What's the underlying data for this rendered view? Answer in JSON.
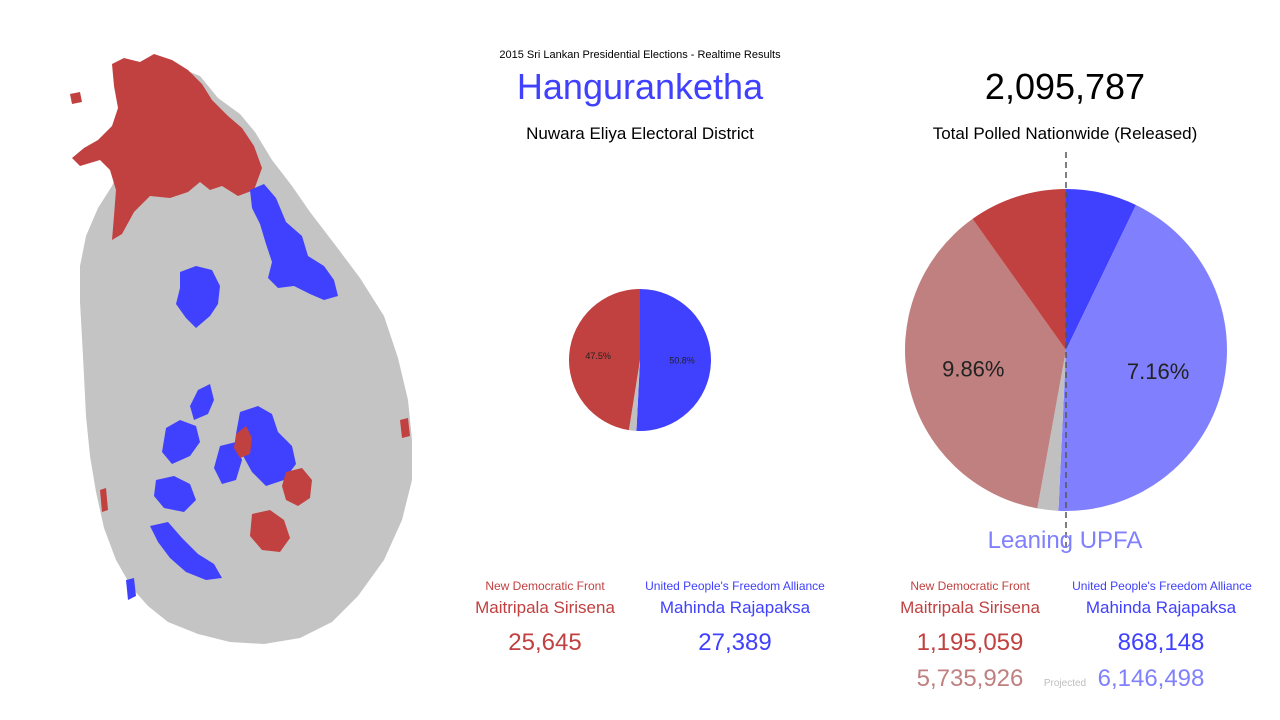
{
  "header": {
    "suptitle": "2015 Sri Lankan Presidential Elections - Realtime Results",
    "division": "Hanguranketha",
    "district": "Nuwara Eliya Electoral District",
    "total_polled": "2,095,787",
    "total_label": "Total Polled Nationwide (Released)",
    "leaning": "Leaning UPFA",
    "projected_label": "Projected"
  },
  "colors": {
    "ndf": "#c14040",
    "upfa": "#4040ff",
    "ndf_light": "#c08080",
    "upfa_light": "#8080ff",
    "other": "#c0c0c0",
    "map_base": "#c4c4c4"
  },
  "local": {
    "ndf_party": "New Democratic Front",
    "upfa_party": "United People's Freedom Alliance",
    "ndf_candidate": "Maitripala Sirisena",
    "upfa_candidate": "Mahinda Rajapaksa",
    "ndf_votes": "25,645",
    "upfa_votes": "27,389"
  },
  "national": {
    "ndf_party": "New Democratic Front",
    "upfa_party": "United People's Freedom Alliance",
    "ndf_candidate": "Maitripala Sirisena",
    "upfa_candidate": "Mahinda Rajapaksa",
    "ndf_votes": "1,195,059",
    "upfa_votes": "868,148",
    "ndf_projected": "5,735,926",
    "upfa_projected": "6,146,498"
  },
  "chart_data": [
    {
      "type": "pie",
      "title": "Hanguranketha",
      "slices": [
        {
          "name": "United People's Freedom Alliance",
          "value": 50.8,
          "label": "50.8%",
          "color": "#4040ff"
        },
        {
          "name": "Other",
          "value": 1.7,
          "label": "",
          "color": "#c0c0c0"
        },
        {
          "name": "New Democratic Front",
          "value": 47.5,
          "label": "47.5%",
          "color": "#c14040"
        }
      ]
    },
    {
      "type": "pie",
      "title": "Total Polled Nationwide (Released)",
      "slices": [
        {
          "name": "United People's Freedom Alliance (released)",
          "value": 7.16,
          "label": "",
          "color": "#4040ff"
        },
        {
          "name": "United People's Freedom Alliance (projected)",
          "value": 43.6,
          "label": "7.16%",
          "color": "#8080ff"
        },
        {
          "name": "Other",
          "value": 2.1,
          "label": "",
          "color": "#c0c0c0"
        },
        {
          "name": "New Democratic Front (projected)",
          "value": 37.3,
          "label": "9.86%",
          "color": "#c08080"
        },
        {
          "name": "New Democratic Front (released)",
          "value": 9.86,
          "label": "",
          "color": "#c14040"
        }
      ],
      "reference_line": "50% vertical dashed line"
    }
  ]
}
